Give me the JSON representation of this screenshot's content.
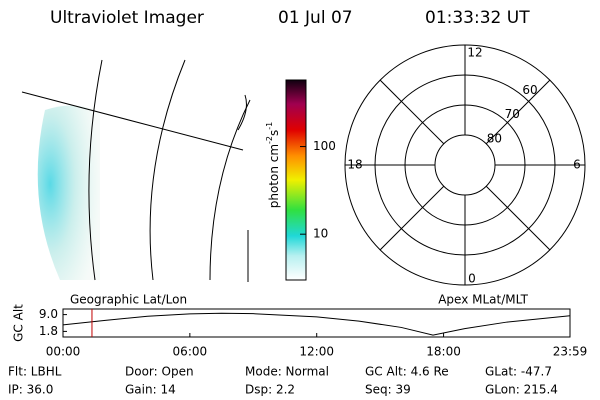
{
  "header": {
    "title": "Ultraviolet Imager",
    "date": "01 Jul 07",
    "time": "01:33:32 UT"
  },
  "colorbar": {
    "label": [
      "photon cm",
      "-2",
      "s",
      "-1"
    ],
    "log": true,
    "lim": [
      3,
      575
    ],
    "ticks": [
      10,
      100
    ]
  },
  "polar": {
    "mlt_labels": [
      "12",
      "6",
      "0",
      "18"
    ],
    "rings": [
      60,
      70,
      80
    ],
    "edge_lat": 50
  },
  "chart_data": {
    "type": "line",
    "left_label": "Geographic Lat/Lon",
    "right_label": "Apex MLat/MLT",
    "ylabel": "GC Alt",
    "x": [
      0,
      2,
      4,
      6,
      7.5,
      9,
      12,
      14,
      16,
      17.5,
      19,
      21,
      23.98
    ],
    "values": [
      4.6,
      6.5,
      8.3,
      9.3,
      9.6,
      9.4,
      8.0,
      6.2,
      3.5,
      0.2,
      3.0,
      5.8,
      8.5
    ],
    "color": "#000000",
    "marker_x": 1.37,
    "marker_color": "#c00000",
    "xlim": [
      0,
      23.98
    ],
    "ylim": [
      -0.6,
      11.4
    ],
    "xticks": [
      {
        "value": 0,
        "label": "00:00"
      },
      {
        "value": 6,
        "label": "06:00"
      },
      {
        "value": 12,
        "label": "12:00"
      },
      {
        "value": 18,
        "label": "18:00"
      },
      {
        "value": 23.98,
        "label": "23:59"
      }
    ],
    "yticks": [
      {
        "value": 1.8,
        "label": "1.8"
      },
      {
        "value": 9,
        "label": "9.0"
      }
    ]
  },
  "footer": [
    [
      "Flt: LBHL",
      "IP: 36.0"
    ],
    [
      "Door: Open",
      "Gain: 14"
    ],
    [
      "Mode: Normal",
      "Dsp:    2.2"
    ],
    [
      "GC Alt: 4.6 Re",
      "Seq: 39"
    ],
    [
      "GLat: -47.7",
      "GLon: 215.4"
    ]
  ]
}
